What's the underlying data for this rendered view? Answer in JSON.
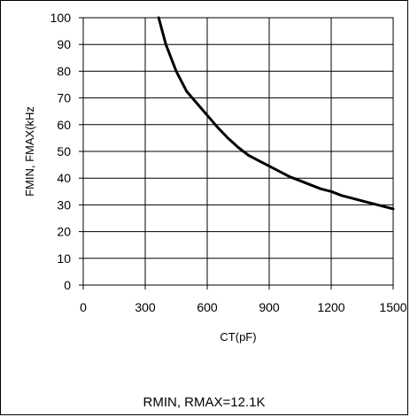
{
  "chart_data": {
    "type": "line",
    "xlabel": "CT(pF)",
    "ylabel": "FMIN, FMAX(kHz",
    "xlim": [
      0,
      1500
    ],
    "ylim": [
      0,
      100
    ],
    "xticks": [
      "0",
      "300",
      "600",
      "900",
      "1200",
      "1500"
    ],
    "yticks": [
      "0",
      "10",
      "20",
      "30",
      "40",
      "50",
      "60",
      "70",
      "80",
      "90",
      "100"
    ],
    "grid": true,
    "series": [
      {
        "x": [
          365,
          400,
          450,
          500,
          550,
          600,
          650,
          700,
          750,
          800,
          850,
          900,
          950,
          1000,
          1050,
          1100,
          1150,
          1200,
          1250,
          1300,
          1350,
          1400,
          1450,
          1500
        ],
        "y": [
          100,
          90,
          80,
          72.5,
          68,
          63.5,
          59,
          55,
          51.5,
          48.5,
          46.5,
          44.5,
          42.5,
          40.5,
          39,
          37.5,
          36,
          35,
          33.5,
          32.5,
          31.5,
          30.5,
          29.5,
          28.5
        ],
        "color": "#000000"
      }
    ]
  },
  "footnote": "RMIN, RMAX=12.1K"
}
